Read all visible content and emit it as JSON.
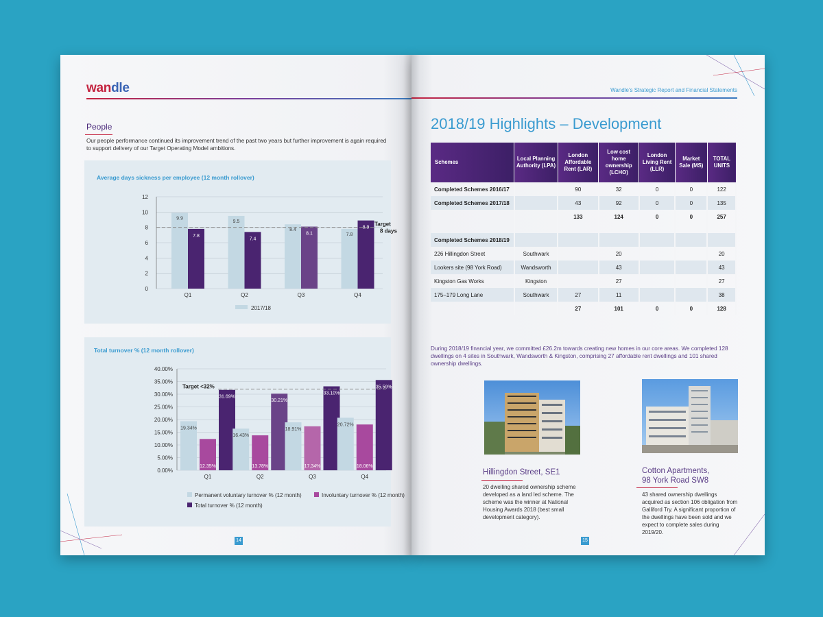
{
  "left_page": {
    "logo": {
      "part1": "wan",
      "part2": "dle"
    },
    "section_title": "People",
    "intro": "Our people performance continued its improvement trend of the past two years but further improvement is again required to support delivery of our Target Operating Model ambitions.",
    "page_number": "14",
    "colors": {
      "light": "#c3d8e3",
      "mid_purple": "#6a4388",
      "dark_purple": "#4a2470",
      "magenta": "#a8499e",
      "brand_red": "#c4233f",
      "brand_blue": "#3a9bd0"
    }
  },
  "chart_data": [
    {
      "type": "bar",
      "title": "Average days sickness per employee (12 month rollover)",
      "categories": [
        "Q1",
        "Q2",
        "Q3",
        "Q4"
      ],
      "series": [
        {
          "name": "2017/18",
          "values": [
            9.9,
            9.5,
            8.4,
            7.8
          ]
        },
        {
          "name": "",
          "values": [
            7.8,
            7.4,
            8.1,
            8.9
          ]
        }
      ],
      "y_ticks": [
        "12",
        "10",
        "8",
        "6",
        "4",
        "2",
        "0"
      ],
      "ylim": [
        0,
        12
      ],
      "target_value": 8,
      "target_label_line1": "Target",
      "target_label_line2": "8 days",
      "legend_position": "bottom"
    },
    {
      "type": "bar",
      "title": "Total turnover % (12 month rollover)",
      "categories": [
        "Q1",
        "Q2",
        "Q3",
        "Q4"
      ],
      "series": [
        {
          "name": "Permanent voluntary turnover % (12 month)",
          "values": [
            19.34,
            16.43,
            18.91,
            20.72
          ],
          "labels": [
            "19.34%",
            "16.43%",
            "18.91%",
            "20.72%"
          ]
        },
        {
          "name": "Involuntary turnover % (12 month)",
          "values": [
            12.35,
            13.78,
            17.34,
            18.06
          ],
          "labels": [
            "12.35%",
            "13.78%",
            "17.34%",
            "18.06%"
          ]
        },
        {
          "name": "Total turnover % (12 month)",
          "values": [
            31.69,
            30.21,
            33.1,
            35.59
          ],
          "labels": [
            "31.69%",
            "30.21%",
            "33.10%",
            "35.59%"
          ]
        }
      ],
      "y_ticks": [
        "40.00%",
        "35.00%",
        "30.00%",
        "25.00%",
        "20.00%",
        "15.00%",
        "10.00%",
        "5.00%",
        "0.00%"
      ],
      "ylim": [
        0,
        40
      ],
      "target_value": 32,
      "target_label": "Target <32%",
      "legend_position": "bottom"
    }
  ],
  "right_page": {
    "header_text": "Wandle's Strategic Report and Financial Statements",
    "title": "2018/19 Highlights – Development",
    "table": {
      "headers": [
        "Schemes",
        "Local Planning Authority (LPA)",
        "London Affordable Rent (LAR)",
        "Low cost home ownership (LCHO)",
        "London Living Rent (LLR)",
        "Market Sale (MS)",
        "TOTAL UNITS"
      ],
      "rows": [
        {
          "cells": [
            "Completed Schemes 2016/17",
            "",
            "90",
            "32",
            "0",
            "0",
            "122"
          ],
          "style": "bold-name"
        },
        {
          "cells": [
            "Completed Schemes 2017/18",
            "",
            "43",
            "92",
            "0",
            "0",
            "135"
          ],
          "style": "bold-name shade"
        },
        {
          "cells": [
            "",
            "",
            "133",
            "124",
            "0",
            "0",
            "257"
          ],
          "style": "bold"
        },
        {
          "cells": [
            "",
            "",
            "",
            "",
            "",
            "",
            ""
          ],
          "style": "spacer"
        },
        {
          "cells": [
            "Completed Schemes 2018/19",
            "",
            "",
            "",
            "",
            "",
            ""
          ],
          "style": "bold-name shade"
        },
        {
          "cells": [
            "226 Hillingdon Street",
            "Southwark",
            "",
            "20",
            "",
            "",
            "20"
          ],
          "style": ""
        },
        {
          "cells": [
            "Lookers site (98 York Road)",
            "Wandsworth",
            "",
            "43",
            "",
            "",
            "43"
          ],
          "style": "shade"
        },
        {
          "cells": [
            "Kingston Gas Works",
            "Kingston",
            "",
            "27",
            "",
            "",
            "27"
          ],
          "style": ""
        },
        {
          "cells": [
            "175–179 Long Lane",
            "Southwark",
            "27",
            "11",
            "",
            "",
            "38"
          ],
          "style": "shade"
        },
        {
          "cells": [
            "",
            "",
            "27",
            "101",
            "0",
            "0",
            "128"
          ],
          "style": "bold"
        }
      ]
    },
    "paragraph": "During 2018/19 financial year, we committed £26.2m towards creating new homes in our core areas. We completed 128 dwellings on 4 sites in Southwark, Wandsworth & Kingston, comprising 27 affordable rent dwellings and 101 shared ownership dwellings.",
    "case1": {
      "title": "Hillingdon Street, SE1",
      "body": "20 dwelling shared ownership scheme developed as a land led scheme. The scheme was the winner at National Housing Awards 2018 (best small development category)."
    },
    "case2": {
      "title_line1": "Cotton Apartments,",
      "title_line2": "98 York Road SW8",
      "body": "43 shared ownership dwellings acquired as section 106 obligation from Galliford Try. A significant proportion of the dwellings have been sold and we expect to complete sales during 2019/20."
    },
    "page_number": "15"
  }
}
